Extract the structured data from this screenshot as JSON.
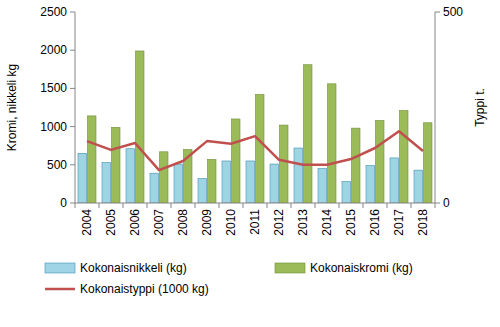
{
  "chart_data": {
    "type": "bar",
    "y_label": "Kromi, nikkeli kg",
    "y2_label": "Typpi t.",
    "categories": [
      "2004",
      "2005",
      "2006",
      "2007",
      "2008",
      "2009",
      "2010",
      "2011",
      "2012",
      "2013",
      "2014",
      "2015",
      "2016",
      "2017",
      "2018"
    ],
    "series": [
      {
        "name": "Kokonaisnikkeli (kg)",
        "type": "bar",
        "color": "#9fd4e6",
        "values": [
          650,
          530,
          710,
          390,
          510,
          320,
          550,
          550,
          510,
          720,
          450,
          280,
          490,
          590,
          430
        ]
      },
      {
        "name": "Kokonaiskromi (kg)",
        "type": "bar",
        "color": "#9bbb59",
        "values": [
          1140,
          990,
          1990,
          670,
          700,
          570,
          1100,
          1420,
          1020,
          1810,
          1560,
          980,
          1080,
          1210,
          1050
        ]
      },
      {
        "name": "Kokonaistyppi (1000 kg)",
        "type": "line",
        "axis": "y2",
        "color": "#c0504d",
        "values": [
          162,
          139,
          157,
          86,
          110,
          162,
          155,
          175,
          113,
          100,
          100,
          115,
          144,
          188,
          136
        ]
      }
    ],
    "ylim": [
      0,
      2500
    ],
    "yticks": [
      0,
      500,
      1000,
      1500,
      2000,
      2500
    ],
    "y2lim": [
      0,
      500
    ],
    "y2ticks": [
      0,
      500
    ],
    "grid": false,
    "legend": "bottom"
  }
}
